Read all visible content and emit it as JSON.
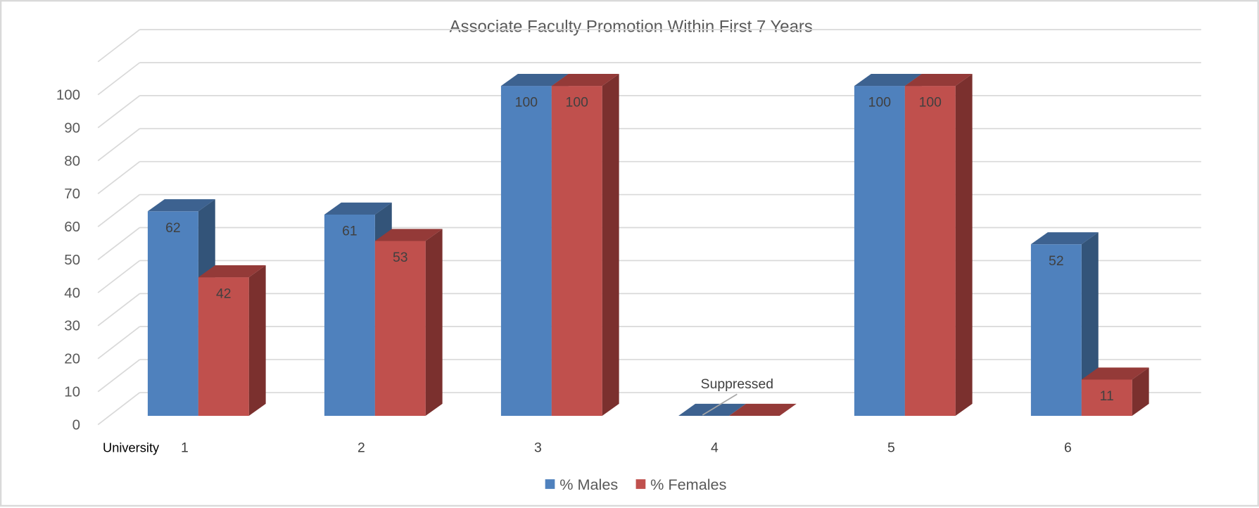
{
  "chart_data": {
    "type": "bar",
    "style": "3d-clustered-column",
    "title": "Associate Faculty Promotion Within First 7 Years",
    "xlabel": "University",
    "ylabel": "",
    "categories": [
      "1",
      "2",
      "3",
      "4",
      "5",
      "6"
    ],
    "series": [
      {
        "name": "% Males",
        "color": "#4f81bd",
        "values": [
          62,
          61,
          100,
          0,
          100,
          52
        ],
        "labels": [
          "62",
          "61",
          "100",
          "",
          "100",
          "52"
        ]
      },
      {
        "name": "% Females",
        "color": "#c0504d",
        "values": [
          42,
          53,
          100,
          0,
          100,
          11
        ],
        "labels": [
          "42",
          "53",
          "100",
          "",
          "100",
          "11"
        ]
      }
    ],
    "annotations": [
      {
        "category": "4",
        "text": "Suppressed"
      }
    ],
    "yticks": [
      0,
      10,
      20,
      30,
      40,
      50,
      60,
      70,
      80,
      90,
      100
    ],
    "ylim": [
      0,
      110
    ],
    "grid": true,
    "legend_position": "bottom"
  },
  "colors": {
    "male_front": "#4f81bd",
    "male_top": "#3d6290",
    "male_side": "#335479",
    "female_front": "#c0504d",
    "female_top": "#943a38",
    "female_side": "#7b302e",
    "grid": "#d9d9d9",
    "text": "#595959"
  }
}
